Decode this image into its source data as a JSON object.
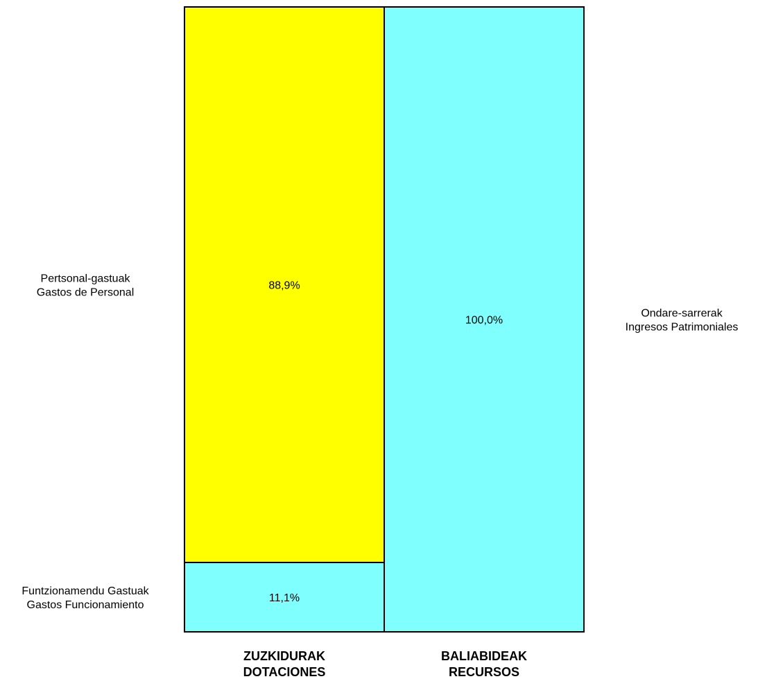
{
  "chart_data": {
    "type": "bar",
    "stacked": true,
    "categories": [
      {
        "line1": "ZUZKIDURAK",
        "line2": "DOTACIONES"
      },
      {
        "line1": "BALIABIDEAK",
        "line2": "RECURSOS"
      }
    ],
    "ylim": [
      0,
      100
    ],
    "grid": false,
    "columns": [
      {
        "segments": [
          {
            "value": 11.1,
            "value_label": "11,1%",
            "label_line1": "Funtzionamendu Gastuak",
            "label_line2": "Gastos Funcionamiento",
            "color": "#80FFFF",
            "label_side": "left"
          },
          {
            "value": 88.9,
            "value_label": "88,9%",
            "label_line1": "Pertsonal-gastuak",
            "label_line2": "Gastos de Personal",
            "color": "#FFFF00",
            "label_side": "left"
          }
        ]
      },
      {
        "segments": [
          {
            "value": 100.0,
            "value_label": "100,0%",
            "label_line1": "Ondare-sarrerak",
            "label_line2": "Ingresos Patrimoniales",
            "color": "#80FFFF",
            "label_side": "right"
          }
        ]
      }
    ]
  }
}
